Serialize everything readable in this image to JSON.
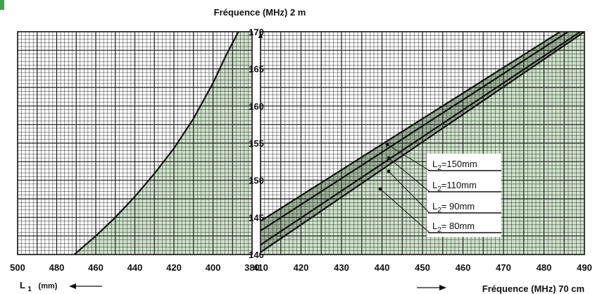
{
  "chart_data": [
    {
      "type": "line",
      "title": "",
      "xlabel": "L1 (mm)",
      "ylabel": "Fréquence (MHz) 2 m",
      "xlim": [
        500,
        380
      ],
      "ylim": [
        140,
        170
      ],
      "x_ticks": [
        "500",
        "480",
        "460",
        "440",
        "420",
        "400",
        "380"
      ],
      "y_ticks": [
        "140",
        "145",
        "150",
        "155",
        "160",
        "165",
        "170"
      ],
      "grid": true,
      "series": [
        {
          "x": [
            471,
            460,
            450,
            440,
            430,
            420,
            410,
            400,
            393,
            387
          ],
          "y": [
            140,
            142.5,
            145,
            147.8,
            150.9,
            154.3,
            158.3,
            163.1,
            167.0,
            170
          ]
        }
      ]
    },
    {
      "type": "line",
      "title": "",
      "xlabel": "Fréquence (MHz) 70 cm",
      "ylabel": "Fréquence (MHz) 2 m",
      "xlim": [
        410,
        490
      ],
      "ylim": [
        140,
        170
      ],
      "x_ticks": [
        "410",
        "420",
        "430",
        "440",
        "450",
        "460",
        "470",
        "480",
        "490"
      ],
      "grid": true,
      "legend": [
        "L2=150mm",
        "L2=110mm",
        "L2= 90mm",
        "L2= 80mm"
      ],
      "series": [
        {
          "name": "L2=150mm",
          "x": [
            410,
            484
          ],
          "y": [
            144.5,
            170
          ]
        },
        {
          "name": "L2=110mm",
          "x": [
            410,
            486
          ],
          "y": [
            143.2,
            170
          ]
        },
        {
          "name": "L2= 90mm",
          "x": [
            410,
            489
          ],
          "y": [
            141.3,
            170
          ]
        },
        {
          "name": "L2= 80mm",
          "x": [
            410,
            490
          ],
          "y": [
            140.3,
            170
          ]
        }
      ]
    }
  ],
  "header": {
    "top_title": "Fréquence (MHz) 2 m",
    "left_xlabel_main": "L",
    "left_xlabel_sub": "1",
    "left_xlabel_unit": "(mm)",
    "right_xlabel": "Fréquence (MHz) 70 cm"
  },
  "legend_labels": [
    {
      "main": "L",
      "sub": "2",
      "rest": "=150mm"
    },
    {
      "main": "L",
      "sub": "2",
      "rest": "=110mm"
    },
    {
      "main": "L",
      "sub": "2",
      "rest": "=  90mm"
    },
    {
      "main": "L",
      "sub": "2",
      "rest": "=  80mm"
    }
  ],
  "colors": {
    "fill": "#cfe3cb",
    "grid": "#1a1a1a",
    "accent": "#3fa34d"
  }
}
